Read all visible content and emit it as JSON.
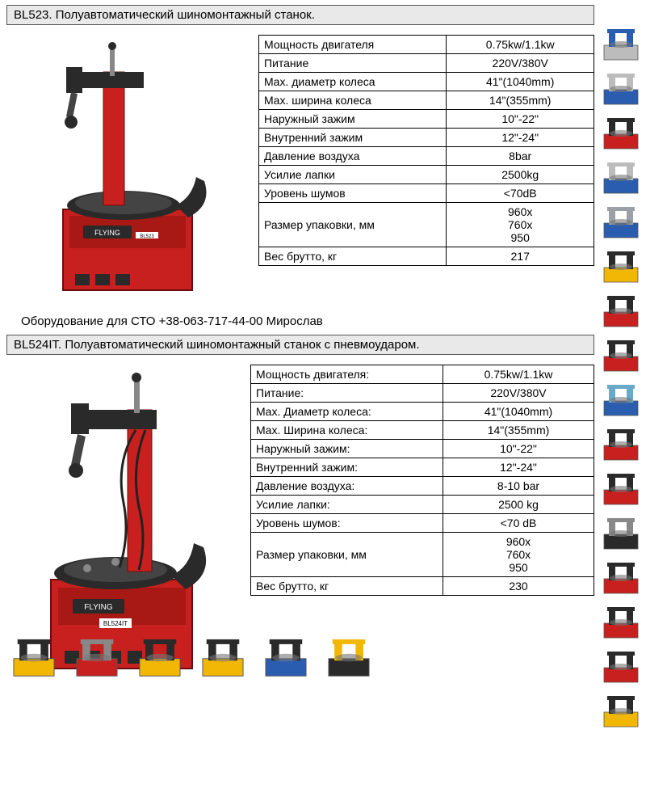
{
  "colors": {
    "machine_red": "#c8201e",
    "machine_dark": "#2a2a2a",
    "title_bg": "#e9e9e9",
    "border": "#000000",
    "text": "#000000",
    "accent_yellow": "#f2b705",
    "accent_blue": "#2a5db0",
    "accent_orange": "#e06a1a",
    "accent_silver": "#bcbcbc"
  },
  "product1": {
    "title": "BL523. Полуавтоматический шиномонтажный станок.",
    "brand": "FLYING",
    "model": "BL523",
    "specs": [
      {
        "label": "Мощность двигателя",
        "value": "0.75kw/1.1kw"
      },
      {
        "label": "Питание",
        "value": "220V/380V"
      },
      {
        "label": "Max. диаметр колеса",
        "value": "41\"(1040mm)"
      },
      {
        "label": "Max. ширина колеса",
        "value": "14\"(355mm)"
      },
      {
        "label": "Наружный зажим",
        "value": "10\"-22\""
      },
      {
        "label": "Внутренний зажим",
        "value": "12\"-24\""
      },
      {
        "label": "Давление воздуха",
        "value": "8bar"
      },
      {
        "label": "Усилие лапки",
        "value": "2500kg"
      },
      {
        "label": "Уровень шумов",
        "value": "<70dB"
      },
      {
        "label": "Размер упаковки, мм",
        "value": "960x\n760x\n950"
      },
      {
        "label": "Вес брутто, кг",
        "value": "217"
      }
    ]
  },
  "contact": "Оборудование для СТО    +38-063-717-44-00   Мирослав",
  "product2": {
    "title": "BL524IT. Полуавтоматический шиномонтажный станок с пневмоударом.",
    "brand": "FLYING",
    "model": "BL524IT",
    "specs": [
      {
        "label": "Мощность двигателя:",
        "value": "0.75kw/1.1kw"
      },
      {
        "label": "Питание:",
        "value": "220V/380V"
      },
      {
        "label": "Max. Диаметр колеса:",
        "value": "41\"(1040mm)"
      },
      {
        "label": "Max. Ширина колеса:",
        "value": "14\"(355mm)"
      },
      {
        "label": "Наружный зажим:",
        "value": "10\"-22\""
      },
      {
        "label": "Внутренний зажим:",
        "value": "12\"-24\""
      },
      {
        "label": "Давление воздуха:",
        "value": "8-10 bar"
      },
      {
        "label": "Усилие лапки:",
        "value": "2500 kg"
      },
      {
        "label": "Уровень шумов:",
        "value": "<70 dB"
      },
      {
        "label": "Размер упаковки, мм",
        "value": "960x\n760x\n950"
      },
      {
        "label": "Вес брутто, кг",
        "value": "230"
      }
    ]
  },
  "side_thumbs": [
    {
      "name": "frame-straightener",
      "primary": "#bcbcbc",
      "secondary": "#2a5db0"
    },
    {
      "name": "car-on-scissor-lift",
      "primary": "#2a5db0",
      "secondary": "#bcbcbc"
    },
    {
      "name": "four-post-lift",
      "primary": "#c8201e",
      "secondary": "#2a2a2a"
    },
    {
      "name": "two-post-lift-blue",
      "primary": "#2a5db0",
      "secondary": "#bcbcbc"
    },
    {
      "name": "two-post-lift-car",
      "primary": "#2a5db0",
      "secondary": "#9aa0a6"
    },
    {
      "name": "welder-yellow",
      "primary": "#f2b705",
      "secondary": "#2a2a2a"
    },
    {
      "name": "wheel-balancer-red",
      "primary": "#c8201e",
      "secondary": "#2a2a2a"
    },
    {
      "name": "wheel-balancer-slim",
      "primary": "#c8201e",
      "secondary": "#2a2a2a"
    },
    {
      "name": "two-post-lift-minivan",
      "primary": "#2a5db0",
      "secondary": "#6aa9c7"
    },
    {
      "name": "four-post-lift-red",
      "primary": "#c8201e",
      "secondary": "#2a2a2a"
    },
    {
      "name": "scissor-lift-red",
      "primary": "#c8201e",
      "secondary": "#2a2a2a"
    },
    {
      "name": "scissor-lift-black",
      "primary": "#2a2a2a",
      "secondary": "#888"
    },
    {
      "name": "press-machine",
      "primary": "#c8201e",
      "secondary": "#2a2a2a"
    },
    {
      "name": "tire-changer-red",
      "primary": "#c8201e",
      "secondary": "#2a2a2a"
    },
    {
      "name": "tire-changer-alt",
      "primary": "#c8201e",
      "secondary": "#2a2a2a"
    },
    {
      "name": "battery-charger",
      "primary": "#f2b705",
      "secondary": "#2a2a2a"
    }
  ],
  "bottom_thumbs": [
    {
      "name": "welder-cart-yellow",
      "primary": "#f2b705",
      "secondary": "#2a2a2a"
    },
    {
      "name": "frame-rack",
      "primary": "#c8201e",
      "secondary": "#888"
    },
    {
      "name": "plasma-cutter-yellow",
      "primary": "#f2b705",
      "secondary": "#2a2a2a"
    },
    {
      "name": "mig-welder-yellow",
      "primary": "#f2b705",
      "secondary": "#2a2a2a"
    },
    {
      "name": "ac-machine",
      "primary": "#2a5db0",
      "secondary": "#2a2a2a"
    },
    {
      "name": "inverter-welder",
      "primary": "#2a2a2a",
      "secondary": "#f2b705"
    }
  ]
}
